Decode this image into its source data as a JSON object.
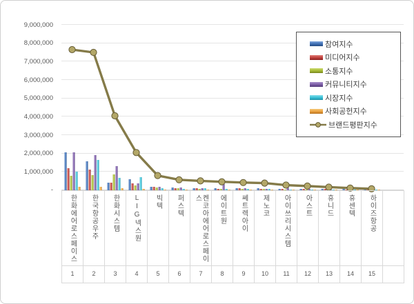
{
  "chart_data": {
    "type": "bar+line",
    "title": "",
    "ylim": [
      0,
      9000000
    ],
    "grid": true,
    "legend_position": "top-right",
    "y_tick_labels": [
      "1,000,000",
      "2,000,000",
      "3,000,000",
      "4,000,000",
      "5,000,000",
      "6,000,000",
      "7,000,000",
      "8,000,000",
      "9,000,000"
    ],
    "y_zero_label": "-",
    "categories": [
      "한화에어로스페이스",
      "한국항공우주",
      "한화시스템",
      "LIG넥스원",
      "빅텍",
      "퍼스텍",
      "켄코아에어로스페이스",
      "에이트원",
      "쎄트렉아이",
      "제노코",
      "아이쓰리시스템",
      "아스트",
      "휴니드",
      "휴센텍",
      "하이즈항공"
    ],
    "ranks": [
      "1",
      "2",
      "3",
      "4",
      "5",
      "6",
      "7",
      "8",
      "9",
      "10",
      "11",
      "12",
      "13",
      "14",
      "15"
    ],
    "bar_series": [
      {
        "name": "참여지수",
        "color_key": "blue",
        "values": [
          2050000,
          1570000,
          420000,
          610000,
          200000,
          150000,
          120000,
          120000,
          120000,
          100000,
          80000,
          80000,
          80000,
          60000,
          50000
        ]
      },
      {
        "name": "미디어지수",
        "color_key": "red",
        "values": [
          1210000,
          1110000,
          420000,
          360000,
          170000,
          120000,
          120000,
          80000,
          100000,
          80000,
          60000,
          80000,
          60000,
          50000,
          50000
        ]
      },
      {
        "name": "소통지수",
        "color_key": "green",
        "values": [
          800000,
          830000,
          860000,
          270000,
          150000,
          120000,
          80000,
          60000,
          80000,
          60000,
          50000,
          50000,
          60000,
          40000,
          40000
        ]
      },
      {
        "name": "커뮤니티지수",
        "color_key": "purple",
        "values": [
          2050000,
          1900000,
          1320000,
          390000,
          170000,
          150000,
          120000,
          330000,
          100000,
          80000,
          420000,
          80000,
          60000,
          50000,
          40000
        ]
      },
      {
        "name": "시장지수",
        "color_key": "cyan",
        "values": [
          1010000,
          1650000,
          670000,
          730000,
          100000,
          80000,
          100000,
          80000,
          80000,
          60000,
          50000,
          50000,
          50000,
          40000,
          30000
        ]
      },
      {
        "name": "사회공헌지수",
        "color_key": "orange",
        "values": [
          170000,
          170000,
          110000,
          60000,
          30000,
          30000,
          30000,
          20000,
          30000,
          20000,
          20000,
          20000,
          20000,
          20000,
          10000
        ]
      }
    ],
    "line_series": {
      "name": "브랜드평판지수",
      "values": [
        7650000,
        7500000,
        4050000,
        2050000,
        800000,
        570000,
        510000,
        460000,
        420000,
        390000,
        280000,
        230000,
        170000,
        120000,
        80000
      ]
    },
    "colors": {
      "blue": {
        "base": "#3A6BB0",
        "light": "#7FA5DC",
        "dark": "#274B80"
      },
      "red": {
        "base": "#BE3E3B",
        "light": "#E07B74",
        "dark": "#87201E"
      },
      "green": {
        "base": "#A4B832",
        "light": "#CBDB6E",
        "dark": "#75851E"
      },
      "purple": {
        "base": "#7A5CA5",
        "light": "#A88FCB",
        "dark": "#523876"
      },
      "cyan": {
        "base": "#35BDD3",
        "light": "#83DFEC",
        "dark": "#1E8EA3"
      },
      "orange": {
        "base": "#E99F3C",
        "light": "#F6C878",
        "dark": "#B56F1D"
      },
      "line": {
        "stroke": "#857B49",
        "marker_fill": "#B3A768",
        "marker_stroke": "#655C35"
      }
    }
  }
}
